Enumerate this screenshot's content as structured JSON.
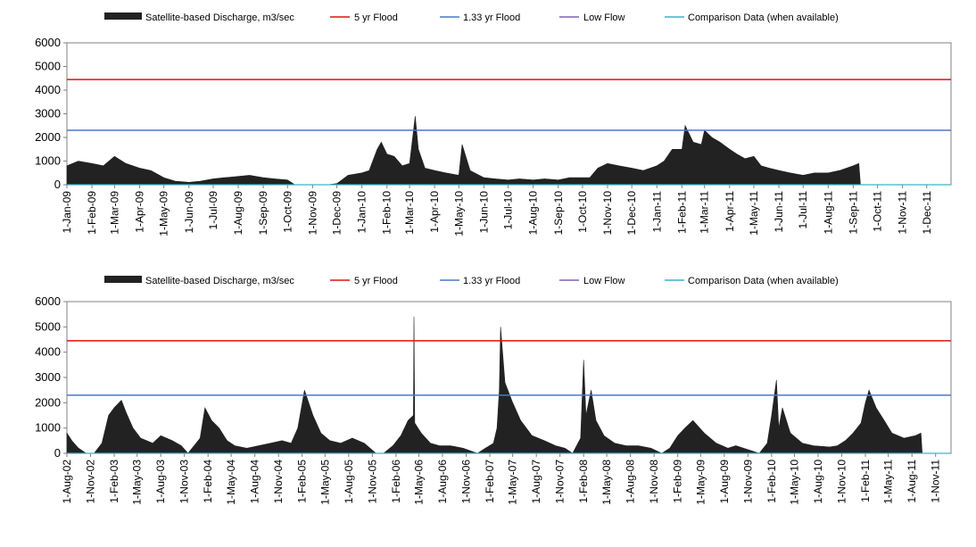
{
  "legend": {
    "discharge": "Satellite-based Discharge, m3/sec",
    "flood5": "5 yr Flood",
    "flood133": "1.33 yr Flood",
    "lowflow": "Low Flow",
    "comparison": "Comparison Data (when available)"
  },
  "colors": {
    "discharge": "#222222",
    "flood5": "#e01010",
    "flood133": "#4a7ac0",
    "lowflow": "#8060b0",
    "comparison": "#40b0c8"
  },
  "chart_data": [
    {
      "type": "area",
      "x_start": "2009-01-01",
      "x_end": "2011-12-31",
      "ylim": [
        0,
        6000
      ],
      "yticks": [
        0,
        1000,
        2000,
        3000,
        4000,
        5000,
        6000
      ],
      "xticks": [
        "1-Jan-09",
        "1-Feb-09",
        "1-Mar-09",
        "1-Apr-09",
        "1-May-09",
        "1-Jun-09",
        "1-Jul-09",
        "1-Aug-09",
        "1-Sep-09",
        "1-Oct-09",
        "1-Nov-09",
        "1-Dec-09",
        "1-Jan-10",
        "1-Feb-10",
        "1-Mar-10",
        "1-Apr-10",
        "1-May-10",
        "1-Jun-10",
        "1-Jul-10",
        "1-Aug-10",
        "1-Sep-10",
        "1-Oct-10",
        "1-Nov-10",
        "1-Dec-10",
        "1-Jan-11",
        "1-Feb-11",
        "1-Mar-11",
        "1-Apr-11",
        "1-May-11",
        "1-Jun-11",
        "1-Jul-11",
        "1-Aug-11",
        "1-Sep-11",
        "1-Oct-11",
        "1-Nov-11",
        "1-Dec-11"
      ],
      "reference_lines": {
        "flood5": 4450,
        "flood133": 2300,
        "lowflow": 0
      },
      "series": [
        {
          "x": [
            "2009-01-01",
            "2009-01-15",
            "2009-02-01",
            "2009-02-15",
            "2009-03-01",
            "2009-03-15",
            "2009-04-01",
            "2009-04-15",
            "2009-05-01",
            "2009-05-15",
            "2009-06-01",
            "2009-06-15",
            "2009-07-01",
            "2009-07-15",
            "2009-08-01",
            "2009-08-15",
            "2009-09-01",
            "2009-09-15",
            "2009-10-01",
            "2009-10-10",
            "2009-11-01",
            "2009-11-20",
            "2009-12-01",
            "2009-12-15",
            "2010-01-01",
            "2010-01-10",
            "2010-01-20",
            "2010-01-25",
            "2010-02-01",
            "2010-02-10",
            "2010-02-20",
            "2010-03-01",
            "2010-03-08",
            "2010-03-12",
            "2010-03-20",
            "2010-04-01",
            "2010-04-15",
            "2010-05-01",
            "2010-05-05",
            "2010-05-15",
            "2010-06-01",
            "2010-06-15",
            "2010-07-01",
            "2010-07-15",
            "2010-08-01",
            "2010-08-15",
            "2010-09-01",
            "2010-09-15",
            "2010-10-01",
            "2010-10-10",
            "2010-10-20",
            "2010-11-01",
            "2010-11-15",
            "2010-12-01",
            "2010-12-15",
            "2011-01-01",
            "2011-01-10",
            "2011-01-20",
            "2011-02-01",
            "2011-02-05",
            "2011-02-15",
            "2011-02-25",
            "2011-03-01",
            "2011-03-10",
            "2011-03-20",
            "2011-04-01",
            "2011-04-10",
            "2011-04-20",
            "2011-05-01",
            "2011-05-10",
            "2011-05-20",
            "2011-06-01",
            "2011-06-15",
            "2011-07-01",
            "2011-07-15",
            "2011-08-01",
            "2011-08-15",
            "2011-09-01",
            "2011-09-08",
            "2011-09-10"
          ],
          "values": [
            800,
            1000,
            900,
            800,
            1200,
            900,
            700,
            600,
            300,
            150,
            100,
            150,
            250,
            300,
            350,
            400,
            300,
            250,
            200,
            0,
            0,
            0,
            50,
            400,
            500,
            600,
            1500,
            1800,
            1300,
            1200,
            800,
            900,
            2900,
            1500,
            700,
            600,
            500,
            400,
            1700,
            600,
            300,
            250,
            200,
            250,
            200,
            250,
            200,
            300,
            300,
            300,
            700,
            900,
            800,
            700,
            600,
            800,
            1000,
            1500,
            1500,
            2500,
            1800,
            1700,
            2300,
            2000,
            1800,
            1500,
            1300,
            1100,
            1200,
            800,
            700,
            600,
            500,
            400,
            500,
            500,
            600,
            800,
            900,
            0
          ]
        }
      ]
    },
    {
      "type": "area",
      "x_start": "2002-08-01",
      "x_end": "2011-12-31",
      "ylim": [
        0,
        6000
      ],
      "yticks": [
        0,
        1000,
        2000,
        3000,
        4000,
        5000,
        6000
      ],
      "xticks": [
        "1-Aug-02",
        "1-Nov-02",
        "1-Feb-03",
        "1-May-03",
        "1-Aug-03",
        "1-Nov-03",
        "1-Feb-04",
        "1-May-04",
        "1-Aug-04",
        "1-Nov-04",
        "1-Feb-05",
        "1-May-05",
        "1-Aug-05",
        "1-Nov-05",
        "1-Feb-06",
        "1-May-06",
        "1-Aug-06",
        "1-Nov-06",
        "1-Feb-07",
        "1-May-07",
        "1-Aug-07",
        "1-Nov-07",
        "1-Feb-08",
        "1-May-08",
        "1-Aug-08",
        "1-Nov-08",
        "1-Feb-09",
        "1-May-09",
        "1-Aug-09",
        "1-Nov-09",
        "1-Feb-10",
        "1-May-10",
        "1-Aug-10",
        "1-Nov-10",
        "1-Feb-11",
        "1-May-11",
        "1-Aug-11",
        "1-Nov-11"
      ],
      "reference_lines": {
        "flood5": 4450,
        "flood133": 2300,
        "lowflow": 0
      },
      "series": [
        {
          "x": [
            "2002-08-01",
            "2002-08-20",
            "2002-09-15",
            "2002-10-15",
            "2002-11-15",
            "2002-12-15",
            "2003-01-10",
            "2003-02-01",
            "2003-03-01",
            "2003-03-20",
            "2003-04-15",
            "2003-05-15",
            "2003-07-01",
            "2003-08-01",
            "2003-09-15",
            "2003-10-20",
            "2003-11-15",
            "2003-12-01",
            "2004-01-01",
            "2004-01-20",
            "2004-02-15",
            "2004-03-15",
            "2004-04-15",
            "2004-05-15",
            "2004-07-01",
            "2004-08-15",
            "2004-10-01",
            "2004-11-15",
            "2004-12-20",
            "2005-01-15",
            "2005-02-10",
            "2005-03-15",
            "2005-04-15",
            "2005-05-20",
            "2005-07-01",
            "2005-08-15",
            "2005-10-01",
            "2005-11-15",
            "2005-12-15",
            "2006-01-20",
            "2006-02-20",
            "2006-03-20",
            "2006-04-10",
            "2006-04-12",
            "2006-04-15",
            "2006-05-10",
            "2006-06-15",
            "2006-07-20",
            "2006-09-01",
            "2006-10-20",
            "2006-12-15",
            "2007-01-15",
            "2007-02-15",
            "2007-03-01",
            "2007-03-10",
            "2007-03-15",
            "2007-04-01",
            "2007-05-01",
            "2007-06-01",
            "2007-07-15",
            "2007-09-01",
            "2007-10-15",
            "2007-11-20",
            "2007-12-20",
            "2008-01-20",
            "2008-02-01",
            "2008-02-10",
            "2008-03-01",
            "2008-03-20",
            "2008-04-20",
            "2008-06-01",
            "2008-07-15",
            "2008-09-01",
            "2008-10-20",
            "2008-12-01",
            "2009-01-01",
            "2009-02-01",
            "2009-03-01",
            "2009-04-01",
            "2009-05-15",
            "2009-07-01",
            "2009-08-15",
            "2009-09-15",
            "2009-11-15",
            "2009-12-15",
            "2010-01-15",
            "2010-02-01",
            "2010-02-20",
            "2010-03-01",
            "2010-03-15",
            "2010-04-15",
            "2010-06-01",
            "2010-07-15",
            "2010-09-15",
            "2010-10-15",
            "2010-11-15",
            "2010-12-15",
            "2011-01-15",
            "2011-02-01",
            "2011-02-15",
            "2011-03-15",
            "2011-04-15",
            "2011-05-15",
            "2011-07-01",
            "2011-08-15",
            "2011-09-05",
            "2011-09-10"
          ],
          "values": [
            800,
            500,
            200,
            0,
            0,
            400,
            1500,
            1800,
            2100,
            1600,
            1000,
            600,
            400,
            700,
            500,
            300,
            0,
            200,
            600,
            1800,
            1300,
            1000,
            500,
            300,
            200,
            300,
            400,
            500,
            400,
            1000,
            2500,
            1500,
            800,
            500,
            400,
            600,
            400,
            0,
            0,
            300,
            700,
            1300,
            1500,
            5400,
            1200,
            800,
            400,
            300,
            300,
            200,
            0,
            200,
            400,
            1000,
            2500,
            5000,
            2800,
            2000,
            1300,
            700,
            500,
            300,
            200,
            0,
            600,
            3700,
            1500,
            2500,
            1300,
            700,
            400,
            300,
            300,
            200,
            0,
            200,
            700,
            1000,
            1300,
            800,
            400,
            200,
            300,
            100,
            0,
            400,
            1500,
            2900,
            1000,
            1800,
            800,
            400,
            300,
            250,
            300,
            500,
            800,
            1200,
            2000,
            2500,
            1800,
            1300,
            800,
            600,
            700,
            800,
            0
          ]
        }
      ]
    }
  ]
}
